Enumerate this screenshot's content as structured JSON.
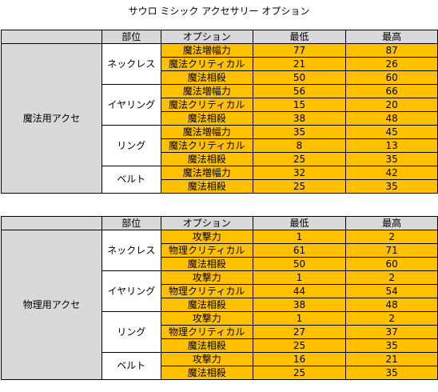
{
  "title": "サウロ ミシック アクセサリー オプション",
  "headers": {
    "part": "部位",
    "option": "オプション",
    "min": "最低",
    "max": "最高"
  },
  "tables": [
    {
      "category": "魔法用アクセ",
      "parts": [
        {
          "name": "ネックレス",
          "options": [
            {
              "option": "魔法増幅力",
              "min": "77",
              "max": "87"
            },
            {
              "option": "魔法クリティカル",
              "min": "21",
              "max": "26"
            },
            {
              "option": "魔法相殺",
              "min": "50",
              "max": "60"
            }
          ]
        },
        {
          "name": "イヤリング",
          "options": [
            {
              "option": "魔法増幅力",
              "min": "56",
              "max": "66"
            },
            {
              "option": "魔法クリティカル",
              "min": "15",
              "max": "20"
            },
            {
              "option": "魔法相殺",
              "min": "38",
              "max": "48"
            }
          ]
        },
        {
          "name": "リング",
          "options": [
            {
              "option": "魔法増幅力",
              "min": "35",
              "max": "45"
            },
            {
              "option": "魔法クリティカル",
              "min": "8",
              "max": "13"
            },
            {
              "option": "魔法相殺",
              "min": "25",
              "max": "35"
            }
          ]
        },
        {
          "name": "ベルト",
          "options": [
            {
              "option": "魔法増幅力",
              "min": "32",
              "max": "42"
            },
            {
              "option": "魔法相殺",
              "min": "25",
              "max": "35"
            }
          ]
        }
      ]
    },
    {
      "category": "物理用アクセ",
      "parts": [
        {
          "name": "ネックレス",
          "options": [
            {
              "option": "攻撃力",
              "min": "1",
              "max": "2"
            },
            {
              "option": "物理クリティカル",
              "min": "61",
              "max": "71"
            },
            {
              "option": "魔法相殺",
              "min": "50",
              "max": "60"
            }
          ]
        },
        {
          "name": "イヤリング",
          "options": [
            {
              "option": "攻撃力",
              "min": "1",
              "max": "2"
            },
            {
              "option": "物理クリティカル",
              "min": "44",
              "max": "54"
            },
            {
              "option": "魔法相殺",
              "min": "38",
              "max": "48"
            }
          ]
        },
        {
          "name": "リング",
          "options": [
            {
              "option": "攻撃力",
              "min": "1",
              "max": "2"
            },
            {
              "option": "物理クリティカル",
              "min": "27",
              "max": "37"
            },
            {
              "option": "魔法相殺",
              "min": "25",
              "max": "35"
            }
          ]
        },
        {
          "name": "ベルト",
          "options": [
            {
              "option": "攻撃力",
              "min": "16",
              "max": "21"
            },
            {
              "option": "魔法相殺",
              "min": "25",
              "max": "35"
            }
          ]
        }
      ]
    }
  ],
  "colors": {
    "header_fill": "#d9d9d9",
    "value_fill": "#ffc000",
    "border": "#000000"
  }
}
